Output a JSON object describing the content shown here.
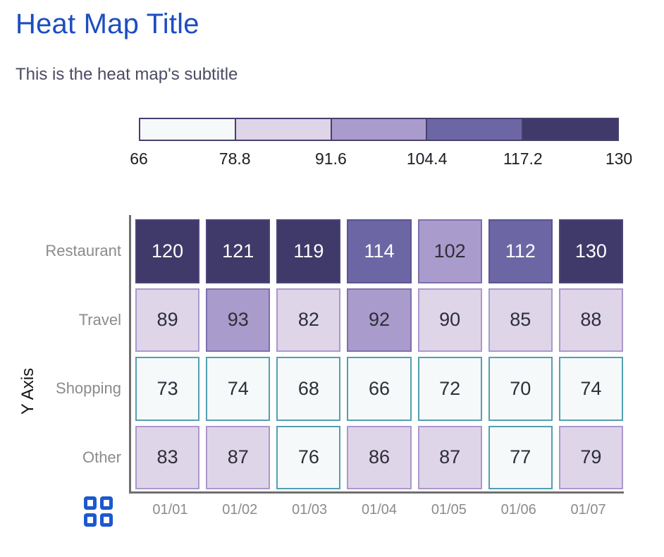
{
  "header": {
    "title": "Heat Map Title",
    "subtitle": "This is the heat map's subtitle"
  },
  "legend": {
    "labels": [
      "66",
      "78.8",
      "91.6",
      "104.4",
      "117.2",
      "130"
    ],
    "band_colors": [
      "#f5f9fa",
      "#ded5e9",
      "#a99bcb",
      "#6c67a4",
      "#3f3a69"
    ],
    "band_border_colors": [
      "#53a0b0",
      "#ab98cb",
      "#7e6fae",
      "#5b5494",
      "#4c4579"
    ],
    "band_text_colors": [
      "#2e2e38",
      "#2e2e38",
      "#2e2e38",
      "#ffffff",
      "#ffffff"
    ],
    "outline_color": "#47406c",
    "position": "top"
  },
  "chart_data": {
    "type": "heatmap",
    "title": "Heat Map Title",
    "subtitle": "This is the heat map's subtitle",
    "x_categories": [
      "01/01",
      "01/02",
      "01/03",
      "01/04",
      "01/05",
      "01/06",
      "01/07"
    ],
    "y_categories": [
      "Restaurant",
      "Travel",
      "Shopping",
      "Other"
    ],
    "xlabel": "",
    "ylabel": "Y Axis",
    "series": [
      {
        "name": "Restaurant",
        "values": [
          120,
          121,
          119,
          114,
          102,
          112,
          130
        ]
      },
      {
        "name": "Travel",
        "values": [
          89,
          93,
          82,
          92,
          90,
          85,
          88
        ]
      },
      {
        "name": "Shopping",
        "values": [
          73,
          74,
          68,
          66,
          72,
          70,
          74
        ]
      },
      {
        "name": "Other",
        "values": [
          83,
          87,
          76,
          86,
          87,
          77,
          79
        ]
      }
    ],
    "color_scale": {
      "stops": [
        66,
        78.8,
        91.6,
        104.4,
        117.2,
        130
      ],
      "min": 66,
      "max": 130,
      "bands": 5,
      "legend_position": "top"
    },
    "grid": false
  },
  "icons": {
    "grid_icon": {
      "name": "grid-icon",
      "shape": "2x2-squares",
      "color": "#1d58cf"
    }
  },
  "colors": {
    "title": "#1c4ec0",
    "subtitle": "#4b4b63",
    "axis_tick_label": "#8b8b8b",
    "axis_line": "#6f6f6f",
    "y_axis_title": "#141414",
    "legend_outline": "#47406c"
  }
}
